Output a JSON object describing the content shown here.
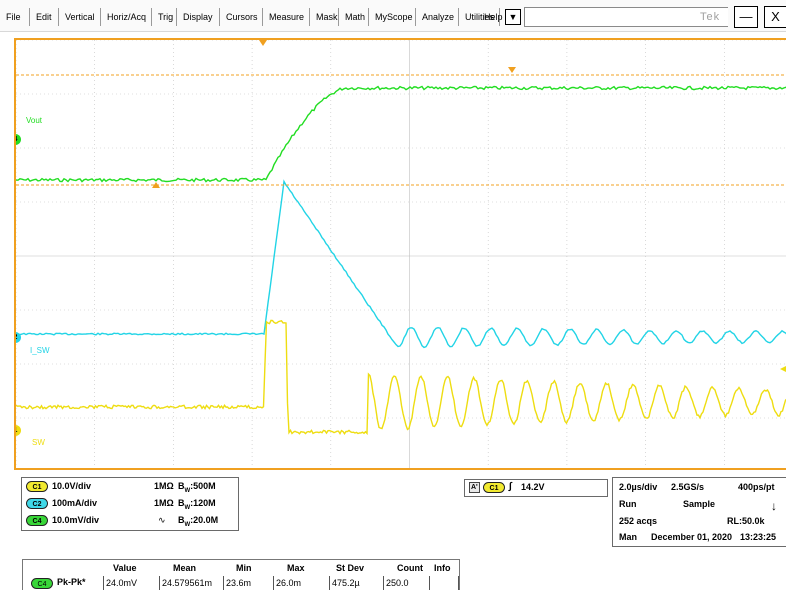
{
  "menu": {
    "items": [
      "File",
      "Edit",
      "Vertical",
      "Horiz/Acq",
      "Trig",
      "Display",
      "Cursors",
      "Measure",
      "Mask",
      "Math",
      "MyScope",
      "Analyze",
      "Utilities",
      "Help"
    ],
    "dropdown_symbol": "▼",
    "brand": "Tek",
    "minimize_symbol": "—",
    "close_symbol": "X"
  },
  "screen": {
    "channels": {
      "ch4": {
        "label": "Vout",
        "marker": "4",
        "color": "#22dd22"
      },
      "ch2": {
        "label": "I_SW",
        "marker": "2",
        "color": "#22d4e6"
      },
      "ch1": {
        "label": "SW",
        "marker": "1",
        "color": "#eedd11"
      }
    },
    "grid_divisions": {
      "horizontal": 10,
      "vertical": 8
    },
    "cursor_color": "#f0a020"
  },
  "channel_settings": [
    {
      "badge": "C1",
      "scale": "10.0V/div",
      "impedance": "1MΩ",
      "bw_label": "B",
      "bw_sub": "W",
      "bw_value": ":500M",
      "coupling": ""
    },
    {
      "badge": "C2",
      "scale": "100mA/div",
      "impedance": "1MΩ",
      "bw_label": "B",
      "bw_sub": "W",
      "bw_value": ":120M",
      "coupling": ""
    },
    {
      "badge": "C4",
      "scale": "10.0mV/div",
      "impedance": "",
      "bw_label": "B",
      "bw_sub": "W",
      "bw_value": ":20.0M",
      "coupling": "∿"
    }
  ],
  "trigger": {
    "prefix": "A'",
    "source": "C1",
    "slope_symbol": "∫",
    "level": "14.2V"
  },
  "acquisition": {
    "timebase": "2.0µs/div",
    "sample_rate": "2.5GS/s",
    "resolution": "400ps/pt",
    "state": "Run",
    "mode": "Sample",
    "arrow": "↓",
    "acqs": "252 acqs",
    "record_length": "RL:50.0k",
    "trigger_mode": "Man",
    "date": "December 01, 2020",
    "time": "13:23:25"
  },
  "measurements": {
    "headers": [
      "Value",
      "Mean",
      "Min",
      "Max",
      "St Dev",
      "Count",
      "Info"
    ],
    "rows": [
      {
        "badge": "C4",
        "name": "Pk-Pk*",
        "value": "24.0mV",
        "mean": "24.579561m",
        "min": "23.6m",
        "max": "26.0m",
        "stdev": "475.2µ",
        "count": "250.0",
        "info": ""
      }
    ]
  }
}
